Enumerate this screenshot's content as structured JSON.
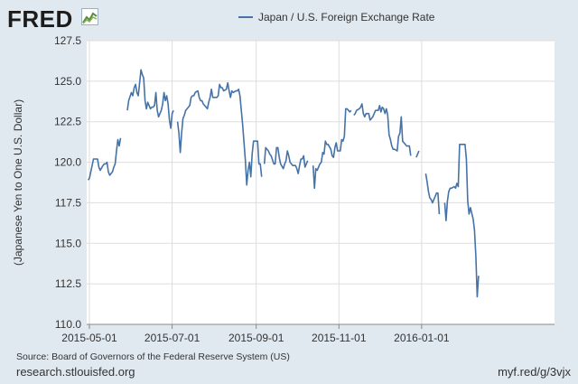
{
  "brand": {
    "logo_text": "FRED",
    "logo_icon": "line-chart-icon"
  },
  "footer": {
    "source": "Source: Board of Governors of the Federal Reserve System (US)",
    "site": "research.stlouisfed.org",
    "short_link": "myf.red/g/3vjx"
  },
  "colors": {
    "line": "#4572a7",
    "background": "#e1e9f0",
    "plot_area": "#ffffff",
    "grid": "#dddddd"
  },
  "chart_data": {
    "type": "line",
    "title": "",
    "xlabel": "",
    "ylabel": "(Japanese Yen to One U.S. Dollar)",
    "ylim": [
      110.0,
      127.5
    ],
    "yticks": [
      "110.0",
      "112.5",
      "115.0",
      "117.5",
      "120.0",
      "122.5",
      "125.0",
      "127.5"
    ],
    "xticks": [
      "2015-05-01",
      "2015-07-01",
      "2015-09-01",
      "2015-11-01",
      "2016-01-01"
    ],
    "xlim": [
      "2015-04-29",
      "2016-04-08"
    ],
    "grid": true,
    "legend_position": "top",
    "series": [
      {
        "name": "Japan / U.S. Foreign Exchange Rate",
        "points": [
          [
            "2015-04-30",
            118.9
          ],
          [
            "2015-05-01",
            119.0
          ],
          [
            "2015-05-04",
            120.2
          ],
          [
            "2015-05-05",
            120.2
          ],
          [
            "2015-05-06",
            120.2
          ],
          [
            "2015-05-07",
            120.2
          ],
          [
            "2015-05-08",
            119.7
          ],
          [
            "2015-05-09",
            119.5
          ],
          [
            "2015-05-11",
            119.8
          ],
          [
            "2015-05-12",
            119.9
          ],
          [
            "2015-05-13",
            119.9
          ],
          [
            "2015-05-14",
            120.0
          ],
          [
            "2015-05-15",
            119.4
          ],
          [
            "2015-05-16",
            119.2
          ],
          [
            "2015-05-18",
            119.4
          ],
          [
            "2015-05-19",
            119.7
          ],
          [
            "2015-05-20",
            119.9
          ],
          [
            "2015-05-21",
            120.7
          ],
          [
            "2015-05-22",
            121.4
          ],
          [
            "2015-05-23",
            121.0
          ],
          [
            "2015-05-24",
            121.5
          ],
          null,
          [
            "2015-05-29",
            123.2
          ],
          [
            "2015-05-30",
            123.8
          ],
          [
            "2015-06-01",
            124.3
          ],
          [
            "2015-06-02",
            124.1
          ],
          [
            "2015-06-03",
            124.6
          ],
          [
            "2015-06-04",
            124.8
          ],
          [
            "2015-06-05",
            124.3
          ],
          [
            "2015-06-06",
            124.1
          ],
          [
            "2015-06-08",
            125.7
          ],
          [
            "2015-06-09",
            125.4
          ],
          [
            "2015-06-10",
            125.2
          ],
          [
            "2015-06-11",
            123.8
          ],
          [
            "2015-06-12",
            123.3
          ],
          [
            "2015-06-13",
            123.7
          ],
          [
            "2015-06-15",
            123.3
          ],
          [
            "2015-06-16",
            123.4
          ],
          [
            "2015-06-17",
            123.4
          ],
          [
            "2015-06-18",
            123.5
          ],
          [
            "2015-06-19",
            124.3
          ],
          [
            "2015-06-20",
            123.2
          ],
          [
            "2015-06-21",
            122.8
          ],
          [
            "2015-06-22",
            123.0
          ],
          [
            "2015-06-23",
            123.2
          ],
          [
            "2015-06-24",
            123.6
          ],
          [
            "2015-06-25",
            124.3
          ],
          [
            "2015-06-26",
            123.8
          ],
          [
            "2015-06-27",
            124.1
          ],
          [
            "2015-06-28",
            123.6
          ],
          [
            "2015-06-29",
            122.6
          ],
          [
            "2015-06-30",
            122.1
          ],
          [
            "2015-07-01",
            123.0
          ],
          [
            "2015-07-02",
            123.2
          ],
          null,
          [
            "2015-07-05",
            122.5
          ],
          [
            "2015-07-06",
            121.8
          ],
          [
            "2015-07-07",
            120.6
          ],
          [
            "2015-07-08",
            121.8
          ],
          [
            "2015-07-09",
            122.7
          ],
          [
            "2015-07-10",
            122.9
          ],
          [
            "2015-07-11",
            123.2
          ],
          [
            "2015-07-13",
            123.4
          ],
          [
            "2015-07-14",
            123.5
          ],
          [
            "2015-07-15",
            124.0
          ],
          [
            "2015-07-16",
            124.1
          ],
          [
            "2015-07-17",
            124.1
          ],
          [
            "2015-07-18",
            124.3
          ],
          [
            "2015-07-20",
            124.4
          ],
          [
            "2015-07-21",
            124.0
          ],
          [
            "2015-07-22",
            123.8
          ],
          [
            "2015-07-23",
            123.8
          ],
          [
            "2015-07-24",
            123.6
          ],
          [
            "2015-07-25",
            123.5
          ],
          [
            "2015-07-27",
            123.3
          ],
          [
            "2015-07-28",
            123.7
          ],
          [
            "2015-07-29",
            124.0
          ],
          [
            "2015-07-30",
            124.5
          ],
          [
            "2015-07-31",
            124.0
          ],
          [
            "2015-08-01",
            124.0
          ],
          [
            "2015-08-03",
            124.0
          ],
          [
            "2015-08-04",
            124.1
          ],
          [
            "2015-08-05",
            124.8
          ],
          [
            "2015-08-06",
            124.6
          ],
          [
            "2015-08-07",
            124.6
          ],
          [
            "2015-08-08",
            124.4
          ],
          [
            "2015-08-10",
            124.5
          ],
          [
            "2015-08-11",
            124.9
          ],
          [
            "2015-08-12",
            124.4
          ],
          [
            "2015-08-13",
            124.0
          ],
          [
            "2015-08-14",
            124.4
          ],
          [
            "2015-08-15",
            124.3
          ],
          [
            "2015-08-17",
            124.4
          ],
          [
            "2015-08-18",
            124.4
          ],
          [
            "2015-08-19",
            124.5
          ],
          [
            "2015-08-20",
            124.1
          ],
          [
            "2015-08-21",
            123.2
          ],
          [
            "2015-08-22",
            122.3
          ],
          [
            "2015-08-23",
            121.2
          ],
          [
            "2015-08-24",
            120.1
          ],
          [
            "2015-08-25",
            118.6
          ],
          [
            "2015-08-26",
            119.5
          ],
          [
            "2015-08-27",
            120.0
          ],
          [
            "2015-08-28",
            119.1
          ],
          [
            "2015-08-29",
            120.5
          ],
          [
            "2015-08-30",
            121.3
          ],
          [
            "2015-08-31",
            121.3
          ],
          [
            "2015-09-02",
            121.3
          ],
          [
            "2015-09-03",
            119.9
          ],
          [
            "2015-09-04",
            119.9
          ],
          [
            "2015-09-05",
            119.1
          ],
          null,
          [
            "2015-09-07",
            119.9
          ],
          [
            "2015-09-08",
            120.9
          ],
          [
            "2015-09-09",
            120.8
          ],
          [
            "2015-09-10",
            120.7
          ],
          [
            "2015-09-11",
            120.5
          ],
          [
            "2015-09-12",
            120.4
          ],
          [
            "2015-09-14",
            119.9
          ],
          [
            "2015-09-15",
            119.9
          ],
          [
            "2015-09-16",
            120.9
          ],
          [
            "2015-09-17",
            120.9
          ],
          [
            "2015-09-18",
            120.3
          ],
          [
            "2015-09-19",
            119.9
          ],
          [
            "2015-09-21",
            119.6
          ],
          [
            "2015-09-22",
            119.9
          ],
          [
            "2015-09-23",
            120.1
          ],
          [
            "2015-09-24",
            120.7
          ],
          [
            "2015-09-25",
            120.4
          ],
          [
            "2015-09-26",
            120.0
          ],
          [
            "2015-09-28",
            119.8
          ],
          [
            "2015-09-29",
            119.8
          ],
          [
            "2015-09-30",
            119.8
          ],
          [
            "2015-10-01",
            119.6
          ],
          [
            "2015-10-02",
            119.3
          ],
          [
            "2015-10-03",
            119.8
          ],
          [
            "2015-10-04",
            120.2
          ],
          [
            "2015-10-05",
            120.2
          ],
          [
            "2015-10-06",
            120.4
          ],
          [
            "2015-10-07",
            119.7
          ],
          [
            "2015-10-08",
            119.9
          ],
          [
            "2015-10-09",
            120.1
          ],
          null,
          [
            "2015-10-13",
            119.8
          ],
          [
            "2015-10-14",
            118.4
          ],
          [
            "2015-10-15",
            119.6
          ],
          [
            "2015-10-16",
            119.5
          ],
          [
            "2015-10-17",
            119.7
          ],
          [
            "2015-10-18",
            119.9
          ],
          [
            "2015-10-19",
            120.0
          ],
          [
            "2015-10-20",
            120.6
          ],
          [
            "2015-10-21",
            120.5
          ],
          [
            "2015-10-22",
            121.3
          ],
          [
            "2015-10-23",
            121.1
          ],
          [
            "2015-10-24",
            121.1
          ],
          [
            "2015-10-26",
            120.8
          ],
          [
            "2015-10-27",
            120.4
          ],
          [
            "2015-10-28",
            120.3
          ],
          [
            "2015-10-29",
            120.9
          ],
          [
            "2015-10-30",
            121.2
          ],
          [
            "2015-10-31",
            120.7
          ],
          [
            "2015-11-02",
            120.7
          ],
          [
            "2015-11-03",
            121.4
          ],
          [
            "2015-11-04",
            121.3
          ],
          [
            "2015-11-05",
            121.6
          ],
          [
            "2015-11-06",
            123.3
          ],
          [
            "2015-11-07",
            123.3
          ],
          [
            "2015-11-09",
            123.1
          ],
          [
            "2015-11-10",
            123.2
          ],
          null,
          [
            "2015-11-12",
            122.9
          ],
          [
            "2015-11-13",
            123.0
          ],
          [
            "2015-11-14",
            123.2
          ],
          [
            "2015-11-16",
            123.3
          ],
          [
            "2015-11-17",
            123.4
          ],
          [
            "2015-11-18",
            123.6
          ],
          [
            "2015-11-19",
            123.0
          ],
          [
            "2015-11-20",
            122.8
          ],
          [
            "2015-11-21",
            123.0
          ],
          [
            "2015-11-23",
            123.0
          ],
          [
            "2015-11-24",
            122.6
          ],
          [
            "2015-11-25",
            122.7
          ],
          [
            "2015-11-26",
            122.8
          ],
          [
            "2015-11-27",
            123.0
          ],
          [
            "2015-11-28",
            123.2
          ],
          [
            "2015-11-30",
            123.2
          ],
          [
            "2015-12-01",
            123.5
          ],
          [
            "2015-12-02",
            123.1
          ],
          [
            "2015-12-03",
            123.4
          ],
          [
            "2015-12-04",
            123.3
          ],
          [
            "2015-12-05",
            123.0
          ],
          [
            "2015-12-06",
            123.3
          ],
          [
            "2015-12-07",
            122.9
          ],
          [
            "2015-12-08",
            121.7
          ],
          [
            "2015-12-09",
            121.4
          ],
          [
            "2015-12-10",
            121.0
          ],
          [
            "2015-12-11",
            120.8
          ],
          [
            "2015-12-12",
            120.8
          ],
          [
            "2015-12-14",
            120.7
          ],
          [
            "2015-12-15",
            121.6
          ],
          [
            "2015-12-16",
            121.8
          ],
          [
            "2015-12-17",
            122.8
          ],
          [
            "2015-12-18",
            121.3
          ],
          [
            "2015-12-19",
            121.2
          ],
          [
            "2015-12-20",
            121.1
          ],
          [
            "2015-12-21",
            121.0
          ],
          [
            "2015-12-22",
            121.0
          ],
          [
            "2015-12-23",
            121.0
          ],
          [
            "2015-12-24",
            120.4
          ],
          null,
          [
            "2015-12-28",
            120.3
          ],
          [
            "2015-12-29",
            120.5
          ],
          [
            "2015-12-30",
            120.7
          ],
          null,
          [
            "2016-01-04",
            119.3
          ],
          [
            "2016-01-05",
            118.8
          ],
          [
            "2016-01-06",
            118.2
          ],
          [
            "2016-01-07",
            117.8
          ],
          [
            "2016-01-08",
            117.7
          ],
          [
            "2016-01-09",
            117.5
          ],
          [
            "2016-01-11",
            117.9
          ],
          [
            "2016-01-12",
            118.1
          ],
          [
            "2016-01-13",
            118.1
          ],
          [
            "2016-01-14",
            116.8
          ],
          null,
          [
            "2016-01-18",
            117.5
          ],
          [
            "2016-01-19",
            116.4
          ],
          [
            "2016-01-20",
            117.6
          ],
          [
            "2016-01-21",
            118.2
          ],
          [
            "2016-01-22",
            118.4
          ],
          [
            "2016-01-23",
            118.4
          ],
          [
            "2016-01-25",
            118.5
          ],
          [
            "2016-01-26",
            118.4
          ],
          [
            "2016-01-27",
            118.7
          ],
          [
            "2016-01-28",
            118.5
          ],
          [
            "2016-01-29",
            121.1
          ],
          [
            "2016-01-30",
            121.1
          ],
          [
            "2016-02-01",
            121.1
          ],
          [
            "2016-02-02",
            121.1
          ],
          [
            "2016-02-03",
            120.2
          ],
          [
            "2016-02-04",
            117.6
          ],
          [
            "2016-02-05",
            116.8
          ],
          [
            "2016-02-06",
            117.2
          ],
          [
            "2016-02-08",
            116.5
          ],
          [
            "2016-02-09",
            115.8
          ],
          [
            "2016-02-10",
            114.2
          ],
          [
            "2016-02-11",
            111.7
          ],
          [
            "2016-02-12",
            113.0
          ]
        ]
      }
    ]
  }
}
